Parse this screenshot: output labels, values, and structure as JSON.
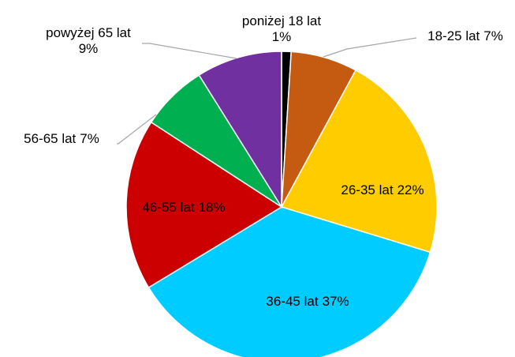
{
  "chart_data": {
    "type": "pie",
    "categories": [
      "poniżej 18 lat",
      "18-25 lat",
      "26-35 lat",
      "36-45 lat",
      "46-55 lat",
      "56-65 lat",
      "powyżej 65 lat"
    ],
    "values": [
      1,
      7,
      22,
      37,
      18,
      7,
      9
    ],
    "value_labels": [
      "1%",
      "7%",
      "22%",
      "37%",
      "18%",
      "7%",
      "9%"
    ],
    "colors": [
      "#000000",
      "#c55a11",
      "#ffcc00",
      "#00ccff",
      "#cc0000",
      "#00b050",
      "#7030a0"
    ]
  }
}
